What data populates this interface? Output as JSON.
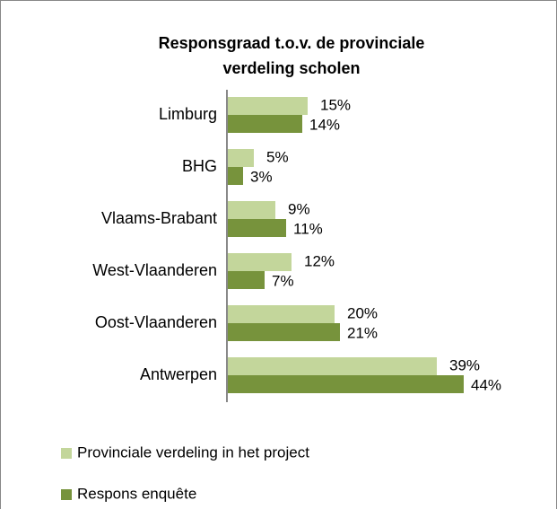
{
  "chart_data": {
    "type": "hbar",
    "title": "Responsgraad t.o.v. de provinciale verdeling scholen",
    "categories": [
      "Limburg",
      "BHG",
      "Vlaams-Brabant",
      "West-Vlaanderen",
      "Oost-Vlaanderen",
      "Antwerpen"
    ],
    "series": [
      {
        "name": "Provinciale verdeling in het project",
        "color": "#c3d69b",
        "values": [
          15,
          5,
          9,
          12,
          20,
          39
        ],
        "value_labels": [
          "15%",
          "5%",
          "9%",
          "12%",
          "20%",
          "39%"
        ]
      },
      {
        "name": "Respons enquête",
        "color": "#77933c",
        "values": [
          14,
          3,
          11,
          7,
          21,
          44
        ],
        "value_labels": [
          "14%",
          "3%",
          "11%",
          "7%",
          "21%",
          "44%"
        ]
      }
    ],
    "legend": "bottom"
  }
}
